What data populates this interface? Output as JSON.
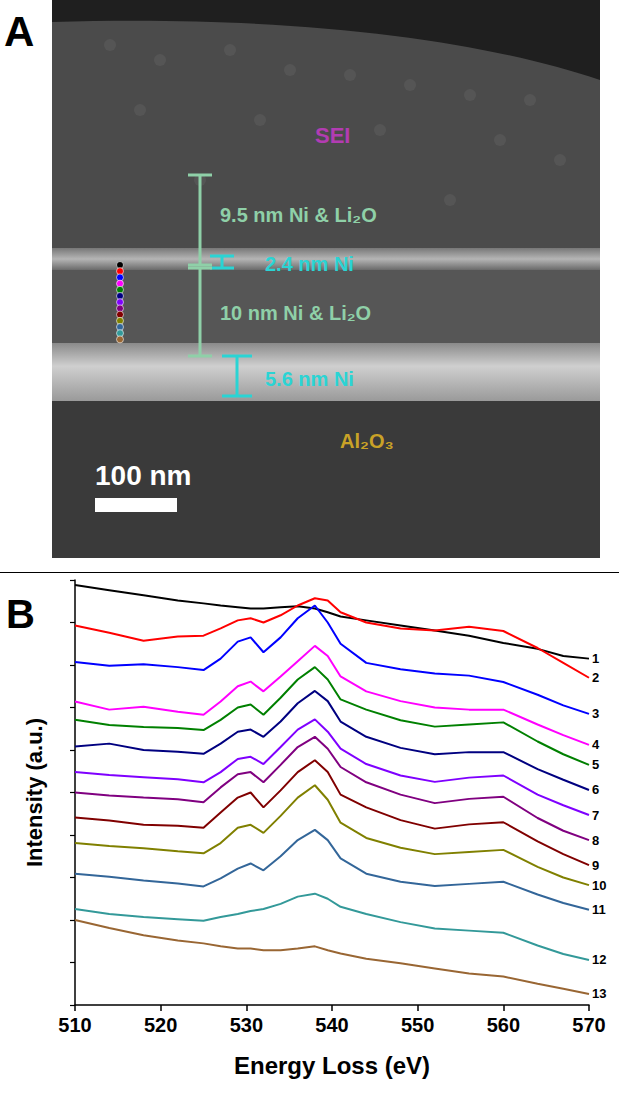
{
  "panel_a": {
    "label": "A",
    "regions": {
      "top": "SEI",
      "bottom": "Al₂O₃"
    },
    "annotations": [
      "9.5 nm Ni & Li₂O",
      "2.4 nm Ni",
      "10 nm Ni & Li₂O",
      "5.6 nm Ni"
    ],
    "scale_bar": "100 nm"
  },
  "chart_data": {
    "panel_label": "B",
    "type": "line",
    "x_label": "Energy Loss (eV)",
    "y_label": "Intensity (a.u.)",
    "x": [
      510,
      514,
      518,
      522,
      525,
      527,
      529,
      530.5,
      532,
      534,
      536,
      538,
      539.5,
      541,
      544,
      548,
      552,
      556,
      560,
      564,
      567,
      570
    ],
    "series": [
      {
        "name": "1",
        "color": "#000000",
        "values": [
          9.88,
          9.76,
          9.64,
          9.52,
          9.45,
          9.4,
          9.36,
          9.33,
          9.33,
          9.36,
          9.38,
          9.33,
          9.24,
          9.14,
          9.05,
          8.93,
          8.81,
          8.69,
          8.52,
          8.38,
          8.21,
          8.15
        ]
      },
      {
        "name": "2",
        "color": "#ff0000",
        "values": [
          8.93,
          8.76,
          8.57,
          8.67,
          8.69,
          8.86,
          9.05,
          9.1,
          9.0,
          9.17,
          9.4,
          9.57,
          9.52,
          9.24,
          9.0,
          8.86,
          8.81,
          8.9,
          8.8,
          8.4,
          8.05,
          7.7
        ]
      },
      {
        "name": "3",
        "color": "#0000ff",
        "values": [
          8.07,
          7.98,
          8.02,
          7.95,
          7.88,
          8.15,
          8.55,
          8.65,
          8.3,
          8.65,
          9.1,
          9.4,
          9.0,
          8.5,
          8.05,
          7.9,
          7.8,
          7.75,
          7.6,
          7.3,
          7.05,
          6.85
        ]
      },
      {
        "name": "4",
        "color": "#ff00ff",
        "values": [
          7.14,
          6.95,
          7.02,
          6.9,
          6.83,
          7.14,
          7.5,
          7.61,
          7.38,
          7.73,
          8.09,
          8.45,
          8.21,
          7.73,
          7.38,
          7.15,
          7.0,
          6.95,
          6.95,
          6.6,
          6.35,
          6.12
        ]
      },
      {
        "name": "5",
        "color": "#008000",
        "values": [
          6.71,
          6.59,
          6.54,
          6.52,
          6.47,
          6.71,
          7.0,
          7.07,
          6.83,
          7.23,
          7.66,
          7.95,
          7.66,
          7.19,
          6.95,
          6.7,
          6.55,
          6.6,
          6.65,
          6.2,
          5.9,
          5.65
        ]
      },
      {
        "name": "6",
        "color": "#000080",
        "values": [
          6.08,
          6.15,
          6.0,
          5.96,
          5.91,
          6.15,
          6.43,
          6.48,
          6.31,
          6.67,
          7.1,
          7.39,
          7.15,
          6.67,
          6.31,
          6.05,
          5.9,
          5.95,
          5.95,
          5.55,
          5.3,
          5.06
        ]
      },
      {
        "name": "7",
        "color": "#7f00ff",
        "values": [
          5.48,
          5.41,
          5.36,
          5.31,
          5.24,
          5.48,
          5.79,
          5.84,
          5.67,
          6.07,
          6.48,
          6.72,
          6.43,
          6.03,
          5.67,
          5.4,
          5.25,
          5.35,
          5.4,
          4.95,
          4.7,
          4.47
        ]
      },
      {
        "name": "8",
        "color": "#800080",
        "values": [
          5.0,
          4.93,
          4.88,
          4.84,
          4.77,
          5.12,
          5.43,
          5.48,
          5.24,
          5.65,
          6.07,
          6.31,
          6.03,
          5.6,
          5.24,
          4.95,
          4.75,
          4.85,
          4.9,
          4.4,
          4.1,
          3.88
        ]
      },
      {
        "name": "9",
        "color": "#800000",
        "values": [
          4.41,
          4.34,
          4.24,
          4.22,
          4.17,
          4.53,
          4.88,
          5.0,
          4.65,
          5.05,
          5.48,
          5.76,
          5.48,
          4.95,
          4.65,
          4.35,
          4.15,
          4.25,
          4.3,
          3.85,
          3.55,
          3.29
        ]
      },
      {
        "name": "10",
        "color": "#808000",
        "values": [
          3.81,
          3.74,
          3.69,
          3.62,
          3.57,
          3.81,
          4.17,
          4.24,
          4.05,
          4.45,
          4.88,
          5.17,
          4.83,
          4.29,
          3.93,
          3.7,
          3.55,
          3.6,
          3.65,
          3.25,
          3.0,
          2.82
        ]
      },
      {
        "name": "11",
        "color": "#336699",
        "values": [
          3.09,
          3.02,
          2.93,
          2.86,
          2.79,
          2.98,
          3.21,
          3.33,
          3.17,
          3.5,
          3.88,
          4.12,
          3.88,
          3.45,
          3.09,
          2.9,
          2.8,
          2.85,
          2.9,
          2.6,
          2.4,
          2.24
        ]
      },
      {
        "name": "12",
        "color": "#339999",
        "values": [
          2.26,
          2.14,
          2.07,
          2.02,
          1.98,
          2.07,
          2.14,
          2.21,
          2.26,
          2.38,
          2.55,
          2.62,
          2.5,
          2.31,
          2.14,
          1.95,
          1.8,
          1.75,
          1.7,
          1.4,
          1.2,
          1.06
        ]
      },
      {
        "name": "13",
        "color": "#996633",
        "values": [
          2.0,
          1.81,
          1.64,
          1.52,
          1.45,
          1.38,
          1.33,
          1.33,
          1.29,
          1.29,
          1.33,
          1.38,
          1.29,
          1.21,
          1.09,
          0.98,
          0.86,
          0.74,
          0.67,
          0.5,
          0.38,
          0.26
        ]
      }
    ],
    "xlim": [
      510,
      570
    ],
    "xticks": [
      510,
      520,
      530,
      540,
      550,
      560,
      570
    ],
    "ylim": [
      0,
      10
    ],
    "yticks": [
      0,
      1,
      2,
      3,
      4,
      5,
      6,
      7,
      8,
      9,
      10
    ],
    "tick_labels": "x",
    "grid": false
  }
}
